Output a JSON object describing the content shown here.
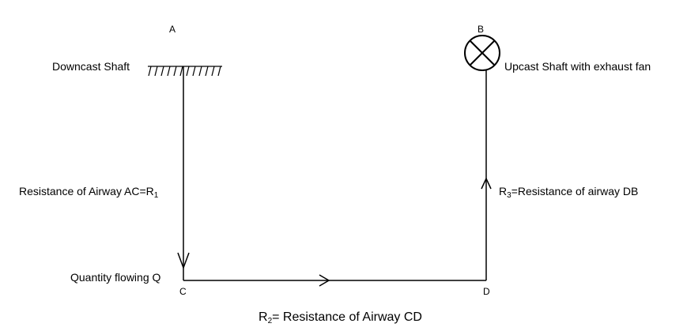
{
  "nodes": {
    "a": "A",
    "b": "B",
    "c": "C",
    "d": "D"
  },
  "labels": {
    "downcast": "Downcast Shaft",
    "upcast": "Upcast Shaft with exhaust fan",
    "resistance_ac_text": "Resistance of Airway AC=R",
    "resistance_ac_sub": "1",
    "resistance_db_r": "R",
    "resistance_db_sub": "3",
    "resistance_db_text": "=Resistance of airway DB",
    "quantity": "Quantity flowing Q",
    "resistance_cd_r": "R",
    "resistance_cd_sub": "2",
    "resistance_cd_text": "= Resistance  of Airway CD"
  },
  "colors": {
    "line": "#000000",
    "background": "#ffffff"
  }
}
